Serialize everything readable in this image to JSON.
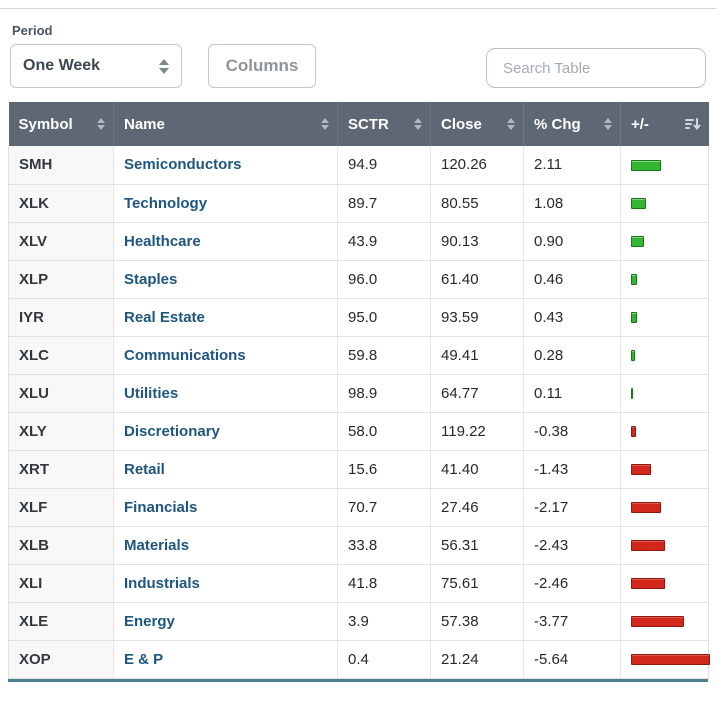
{
  "controls": {
    "period_label": "Period",
    "period_value": "One Week",
    "columns_button": "Columns",
    "search_placeholder": "Search Table"
  },
  "table": {
    "columns": [
      "Symbol",
      "Name",
      "SCTR",
      "Close",
      "% Chg",
      "+/-"
    ],
    "bar_scale": 14,
    "rows": [
      {
        "symbol": "SMH",
        "name": "Semiconductors",
        "sctr": "94.9",
        "close": "120.26",
        "chg": "2.11"
      },
      {
        "symbol": "XLK",
        "name": "Technology",
        "sctr": "89.7",
        "close": "80.55",
        "chg": "1.08"
      },
      {
        "symbol": "XLV",
        "name": "Healthcare",
        "sctr": "43.9",
        "close": "90.13",
        "chg": "0.90"
      },
      {
        "symbol": "XLP",
        "name": "Staples",
        "sctr": "96.0",
        "close": "61.40",
        "chg": "0.46"
      },
      {
        "symbol": "IYR",
        "name": "Real Estate",
        "sctr": "95.0",
        "close": "93.59",
        "chg": "0.43"
      },
      {
        "symbol": "XLC",
        "name": "Communications",
        "sctr": "59.8",
        "close": "49.41",
        "chg": "0.28"
      },
      {
        "symbol": "XLU",
        "name": "Utilities",
        "sctr": "98.9",
        "close": "64.77",
        "chg": "0.11"
      },
      {
        "symbol": "XLY",
        "name": "Discretionary",
        "sctr": "58.0",
        "close": "119.22",
        "chg": "-0.38"
      },
      {
        "symbol": "XRT",
        "name": "Retail",
        "sctr": "15.6",
        "close": "41.40",
        "chg": "-1.43"
      },
      {
        "symbol": "XLF",
        "name": "Financials",
        "sctr": "70.7",
        "close": "27.46",
        "chg": "-2.17"
      },
      {
        "symbol": "XLB",
        "name": "Materials",
        "sctr": "33.8",
        "close": "56.31",
        "chg": "-2.43"
      },
      {
        "symbol": "XLI",
        "name": "Industrials",
        "sctr": "41.8",
        "close": "75.61",
        "chg": "-2.46"
      },
      {
        "symbol": "XLE",
        "name": "Energy",
        "sctr": "3.9",
        "close": "57.38",
        "chg": "-3.77"
      },
      {
        "symbol": "XOP",
        "name": "E & P",
        "sctr": "0.4",
        "close": "21.24",
        "chg": "-5.64"
      }
    ]
  },
  "colors": {
    "positive": "#33b533",
    "negative": "#d2271b",
    "header_bg": "#5d6874",
    "link": "#1e567f"
  }
}
